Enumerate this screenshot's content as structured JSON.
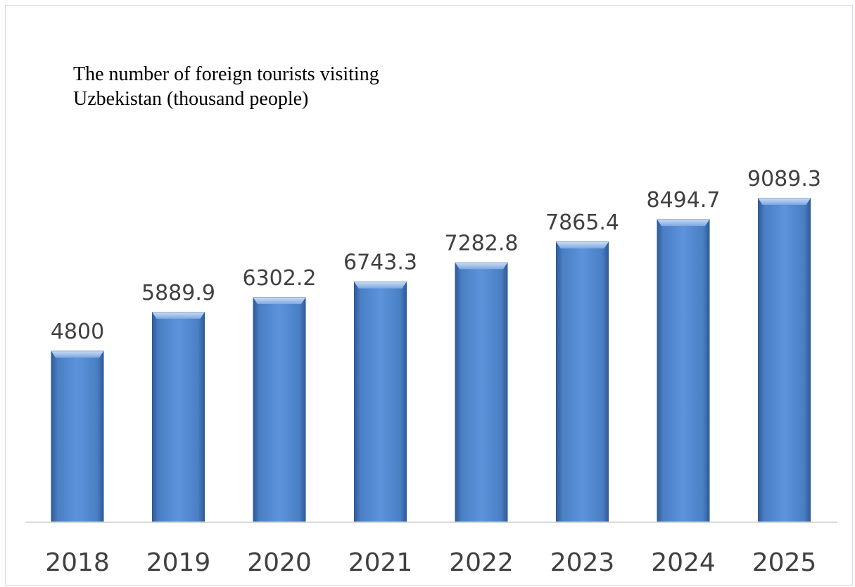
{
  "chart_data": {
    "type": "bar",
    "title_lines": [
      "The number of foreign tourists visiting",
      "Uzbekistan (thousand people)"
    ],
    "xlabel": "",
    "ylabel": "",
    "categories": [
      "2018",
      "2019",
      "2020",
      "2021",
      "2022",
      "2023",
      "2024",
      "2025"
    ],
    "values": [
      4800,
      5889.9,
      6302.2,
      6743.3,
      7282.8,
      7865.4,
      8494.7,
      9089.3
    ],
    "value_labels": [
      "4800",
      "5889.9",
      "6302.2",
      "6743.3",
      "7282.8",
      "7865.4",
      "8494.7",
      "9089.3"
    ],
    "ylim": [
      0,
      9089.3
    ],
    "grid": false,
    "legend": "none",
    "colors": {
      "bar_top": "#4f81c4",
      "bar_mid": "#5b8fd6",
      "bar_bottom": "#3b6cb0",
      "bar_cap": "#a9c6ef",
      "axis": "#d9d9d9",
      "text": "#404040"
    }
  }
}
